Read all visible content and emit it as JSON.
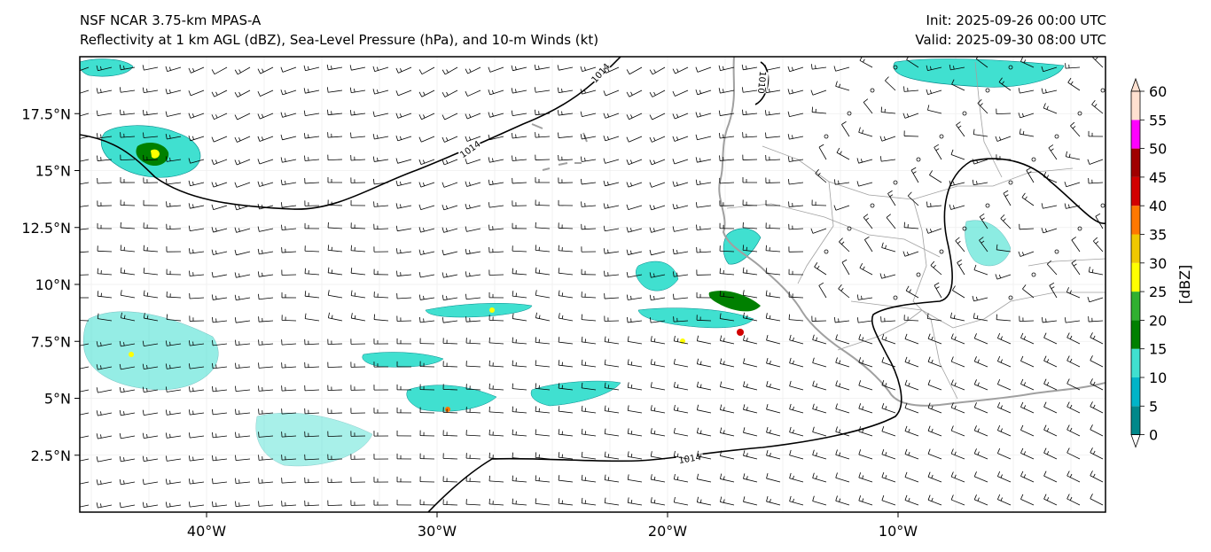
{
  "title_left": {
    "line1": "NSF NCAR 3.75-km MPAS-A",
    "line2": "Reflectivity at 1 km AGL (dBZ), Sea-Level Pressure (hPa), and 10-m Winds (kt)"
  },
  "title_right": {
    "line1": "Init: 2025-09-26 00:00 UTC",
    "line2": "Valid: 2025-09-30 08:00 UTC"
  },
  "map": {
    "lon_range": [
      -45.5,
      -1.0
    ],
    "lat_range": [
      0,
      20
    ],
    "lon_ticks": [
      {
        "value": -40,
        "label": "40°W"
      },
      {
        "value": -30,
        "label": "30°W"
      },
      {
        "value": -20,
        "label": "20°W"
      },
      {
        "value": -10,
        "label": "10°W"
      }
    ],
    "lat_ticks": [
      {
        "value": 17.5,
        "label": "17.5°N"
      },
      {
        "value": 15,
        "label": "15°N"
      },
      {
        "value": 12.5,
        "label": "12.5°N"
      },
      {
        "value": 10,
        "label": "10°N"
      },
      {
        "value": 7.5,
        "label": "7.5°N"
      },
      {
        "value": 5,
        "label": "5°N"
      },
      {
        "value": 2.5,
        "label": "2.5°N"
      }
    ],
    "contour_labels": [
      "1014",
      "1014",
      "1014",
      "1010"
    ]
  },
  "colorbar": {
    "label": "[dBZ]",
    "ticks": [
      "0",
      "5",
      "10",
      "15",
      "20",
      "25",
      "30",
      "35",
      "40",
      "45",
      "50",
      "55",
      "60"
    ],
    "colors": [
      "#ffffff",
      "#00888a",
      "#00b4c8",
      "#40e0d0",
      "#008000",
      "#30b030",
      "#ffff00",
      "#f0c800",
      "#ff7800",
      "#d20000",
      "#a00000",
      "#ff00ff",
      "#ffe0d0"
    ]
  }
}
